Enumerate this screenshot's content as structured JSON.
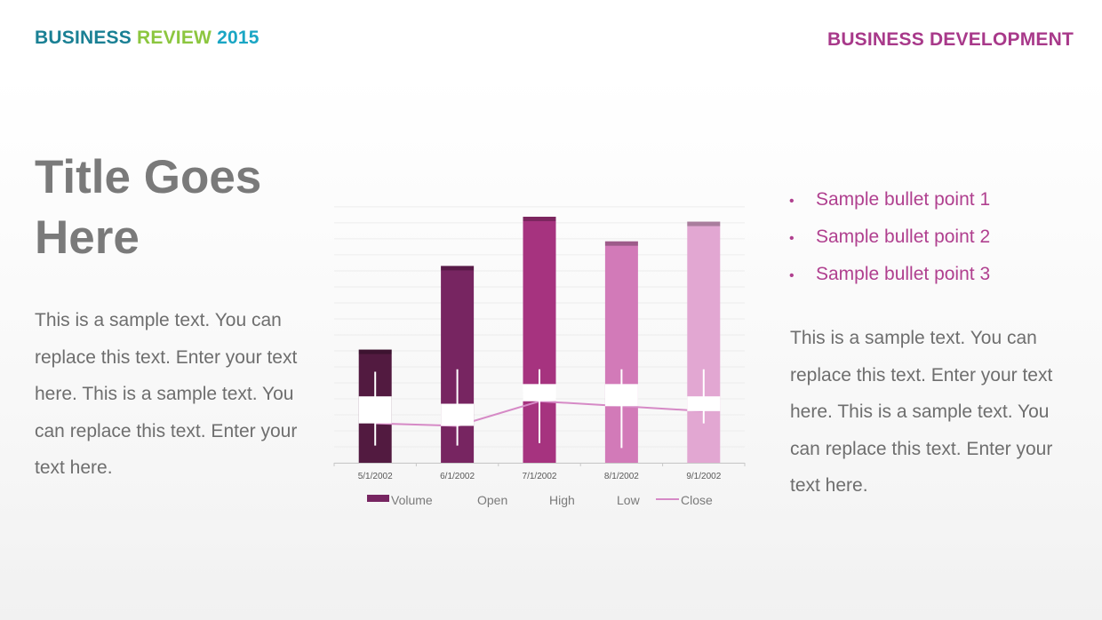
{
  "header": {
    "left": [
      {
        "text": "BUSINESS ",
        "color": "#1a8094"
      },
      {
        "text": "REVIEW",
        "color": "#8cc63f"
      },
      {
        "text": " 2015",
        "color": "#1aa6c4"
      }
    ],
    "right": {
      "text": "BUSINESS DEVELOPMENT",
      "color": "#a8398a"
    }
  },
  "title": {
    "lines": [
      "Title Goes",
      "Here"
    ]
  },
  "left_body": "This is a sample text. You can replace this text. Enter your text here. This is a sample text. You can replace this text. Enter your text here.",
  "bullets": {
    "color": "#b0408f",
    "marker": "•",
    "items": [
      "Sample bullet point 1",
      "Sample bullet point 2",
      "Sample bullet point 3"
    ]
  },
  "right_body": "This is a sample text. You can replace this text. Enter your text here. This is a sample text. You can replace this text. Enter your text here.",
  "chart_data": {
    "type": "bar",
    "categories": [
      "5/1/2002",
      "6/1/2002",
      "7/1/2002",
      "8/1/2002",
      "9/1/2002"
    ],
    "ylim": [
      0,
      100
    ],
    "grid": true,
    "legend_placement": "bottom",
    "legend": [
      "Volume",
      "Open",
      "High",
      "Low",
      "Close"
    ],
    "series": [
      {
        "name": "Volume",
        "values": [
          46,
          80,
          100,
          90,
          98
        ],
        "colors": [
          "#521a40",
          "#772561",
          "#a6337f",
          "#d27ab8",
          "#e2a7d2"
        ]
      },
      {
        "name": "Open",
        "values": [
          27,
          24,
          32,
          32,
          27
        ]
      },
      {
        "name": "High",
        "values": [
          37,
          38,
          38,
          38,
          38
        ]
      },
      {
        "name": "Low",
        "values": [
          7,
          7,
          8,
          6,
          16
        ]
      },
      {
        "name": "Close",
        "values": [
          16,
          15,
          25,
          23,
          21
        ],
        "color": "#d68ac6"
      }
    ]
  }
}
